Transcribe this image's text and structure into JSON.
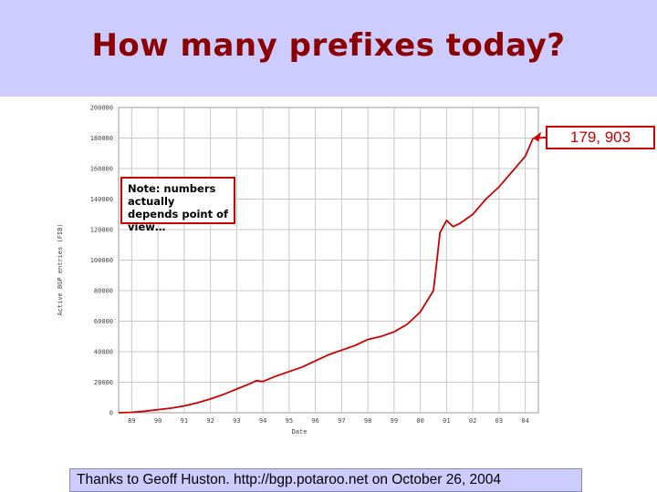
{
  "slide": {
    "title": "How many prefixes today?",
    "callout": "179, 903",
    "note": "Note: numbers actually depends point of view…",
    "footer": "Thanks to Geoff Huston. http://bgp.potaroo.net on October 26, 2004"
  },
  "colors": {
    "title": "#8b0000",
    "title_band": "#ccccff",
    "series": "#cc0000",
    "grid": "#c8c8c8",
    "callout": "#cc0000"
  },
  "chart_data": {
    "type": "line",
    "xlabel": "Date",
    "ylabel": "Active BGP entries (FIB)",
    "x_ticks": [
      "89",
      "90",
      "91",
      "92",
      "93",
      "94",
      "95",
      "96",
      "97",
      "98",
      "99",
      "00",
      "01",
      "02",
      "03",
      "04"
    ],
    "y_ticks": [
      "0",
      "20000",
      "40000",
      "60000",
      "80000",
      "100000",
      "120000",
      "140000",
      "160000",
      "180000",
      "200000"
    ],
    "xlim": [
      1989.0,
      2005.0
    ],
    "ylim": [
      0,
      200000
    ],
    "grid": true,
    "series": [
      {
        "x": [
          1989.0,
          1989.5,
          1990.0,
          1990.5,
          1991.0,
          1991.5,
          1992.0,
          1992.5,
          1993.0,
          1993.5,
          1994.0,
          1994.25,
          1994.5,
          1995.0,
          1995.5,
          1996.0,
          1996.5,
          1997.0,
          1997.5,
          1998.0,
          1998.5,
          1999.0,
          1999.5,
          2000.0,
          2000.5,
          2001.0,
          2001.1,
          2001.25,
          2001.5,
          2001.75,
          2002.0,
          2002.5,
          2003.0,
          2003.5,
          2004.0,
          2004.5,
          2004.8
        ],
        "y": [
          0,
          300,
          1000,
          2000,
          3000,
          4500,
          6500,
          9000,
          12000,
          15500,
          19000,
          21000,
          20500,
          24000,
          27000,
          30000,
          34000,
          38000,
          41000,
          44000,
          48000,
          50000,
          53000,
          58000,
          66000,
          80000,
          95000,
          118000,
          126000,
          122000,
          124000,
          130000,
          140000,
          148000,
          158000,
          168000,
          179903
        ]
      }
    ]
  }
}
